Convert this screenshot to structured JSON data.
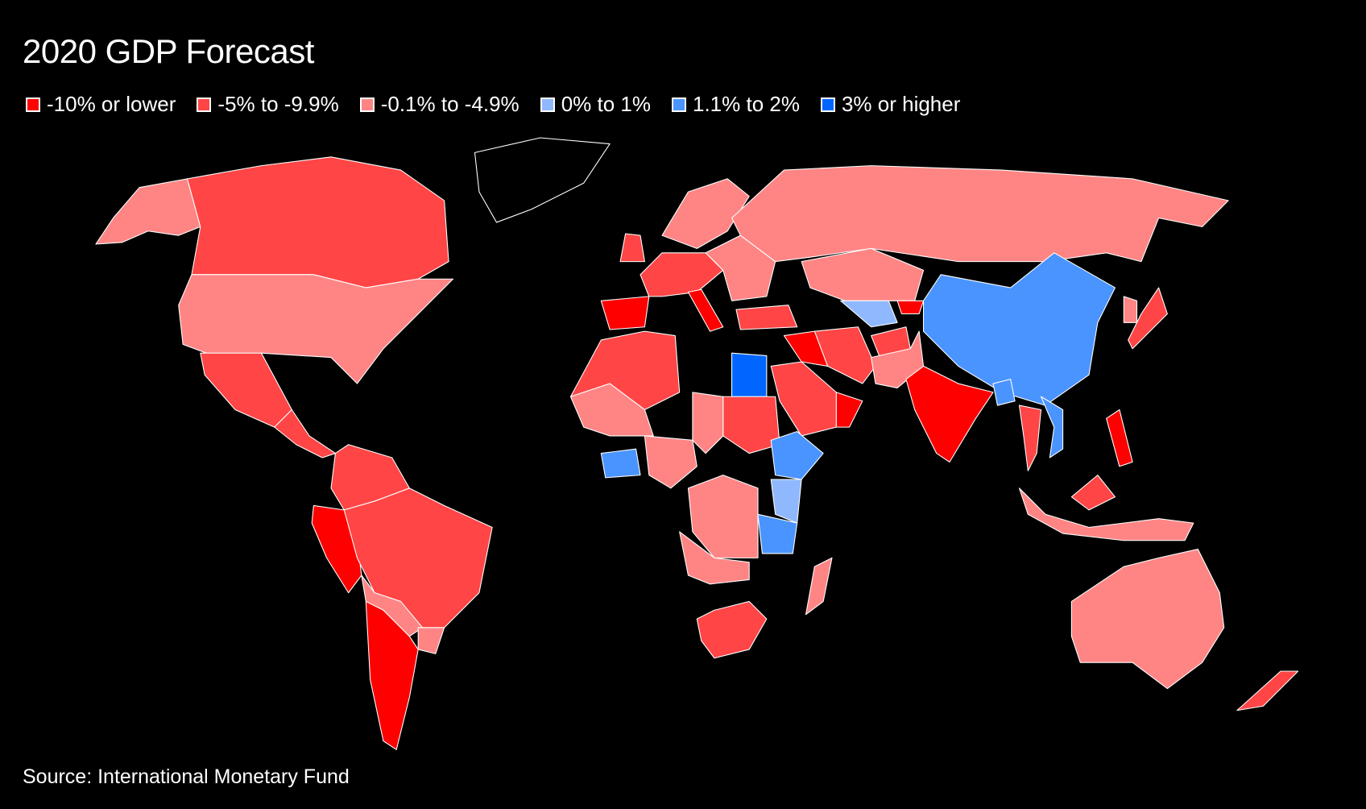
{
  "title": "2020 GDP Forecast",
  "legend": [
    {
      "label": "-10% or lower",
      "color": "#ff0000"
    },
    {
      "label": "-5% to -9.9%",
      "color": "#ff4545"
    },
    {
      "label": "-0.1% to -4.9%",
      "color": "#ff8585"
    },
    {
      "label": "0% to 1%",
      "color": "#8fb8ff"
    },
    {
      "label": "1.1% to 2%",
      "color": "#4a94ff"
    },
    {
      "label": "3% or higher",
      "color": "#0066ff"
    }
  ],
  "no_data_color": "#000000",
  "regions": {
    "alaska": 2,
    "canada": 1,
    "usa": 2,
    "mexico": 1,
    "central_america": 1,
    "colombia_venezuela": 1,
    "ecuador_peru": 0,
    "brazil": 1,
    "bolivia_paraguay": 2,
    "argentina_chile": 0,
    "uruguay": 2,
    "spain_portugal": 0,
    "western_europe": 1,
    "italy": 0,
    "scandinavia": 2,
    "eastern_europe": 2,
    "uk": 1,
    "russia": 2,
    "kazakhstan": 2,
    "uzbekistan": 3,
    "kyrgyzstan": 0,
    "turkey": 1,
    "iran": 1,
    "saudi_arabia": 1,
    "iraq": 0,
    "oman": 0,
    "pakistan": 2,
    "afghanistan": 1,
    "india": 0,
    "bangladesh": 4,
    "china": 4,
    "vietnam": 4,
    "thailand": 1,
    "philippines": 0,
    "japan": 1,
    "korea": 2,
    "indonesia": 2,
    "malaysia": 1,
    "morocco_algeria": 1,
    "west_sahel": 2,
    "nigeria_region": 2,
    "ghana_ivory_coast": 4,
    "egypt": 5,
    "sudan": 1,
    "chad": 2,
    "ethiopia": 4,
    "kenya": 3,
    "tanzania": 4,
    "drc": 2,
    "angola": 2,
    "south_africa": 1,
    "madagascar": 2,
    "australia": 2,
    "new_zealand": 1,
    "greenland": null
  },
  "source": "Source: International Monetary Fund"
}
